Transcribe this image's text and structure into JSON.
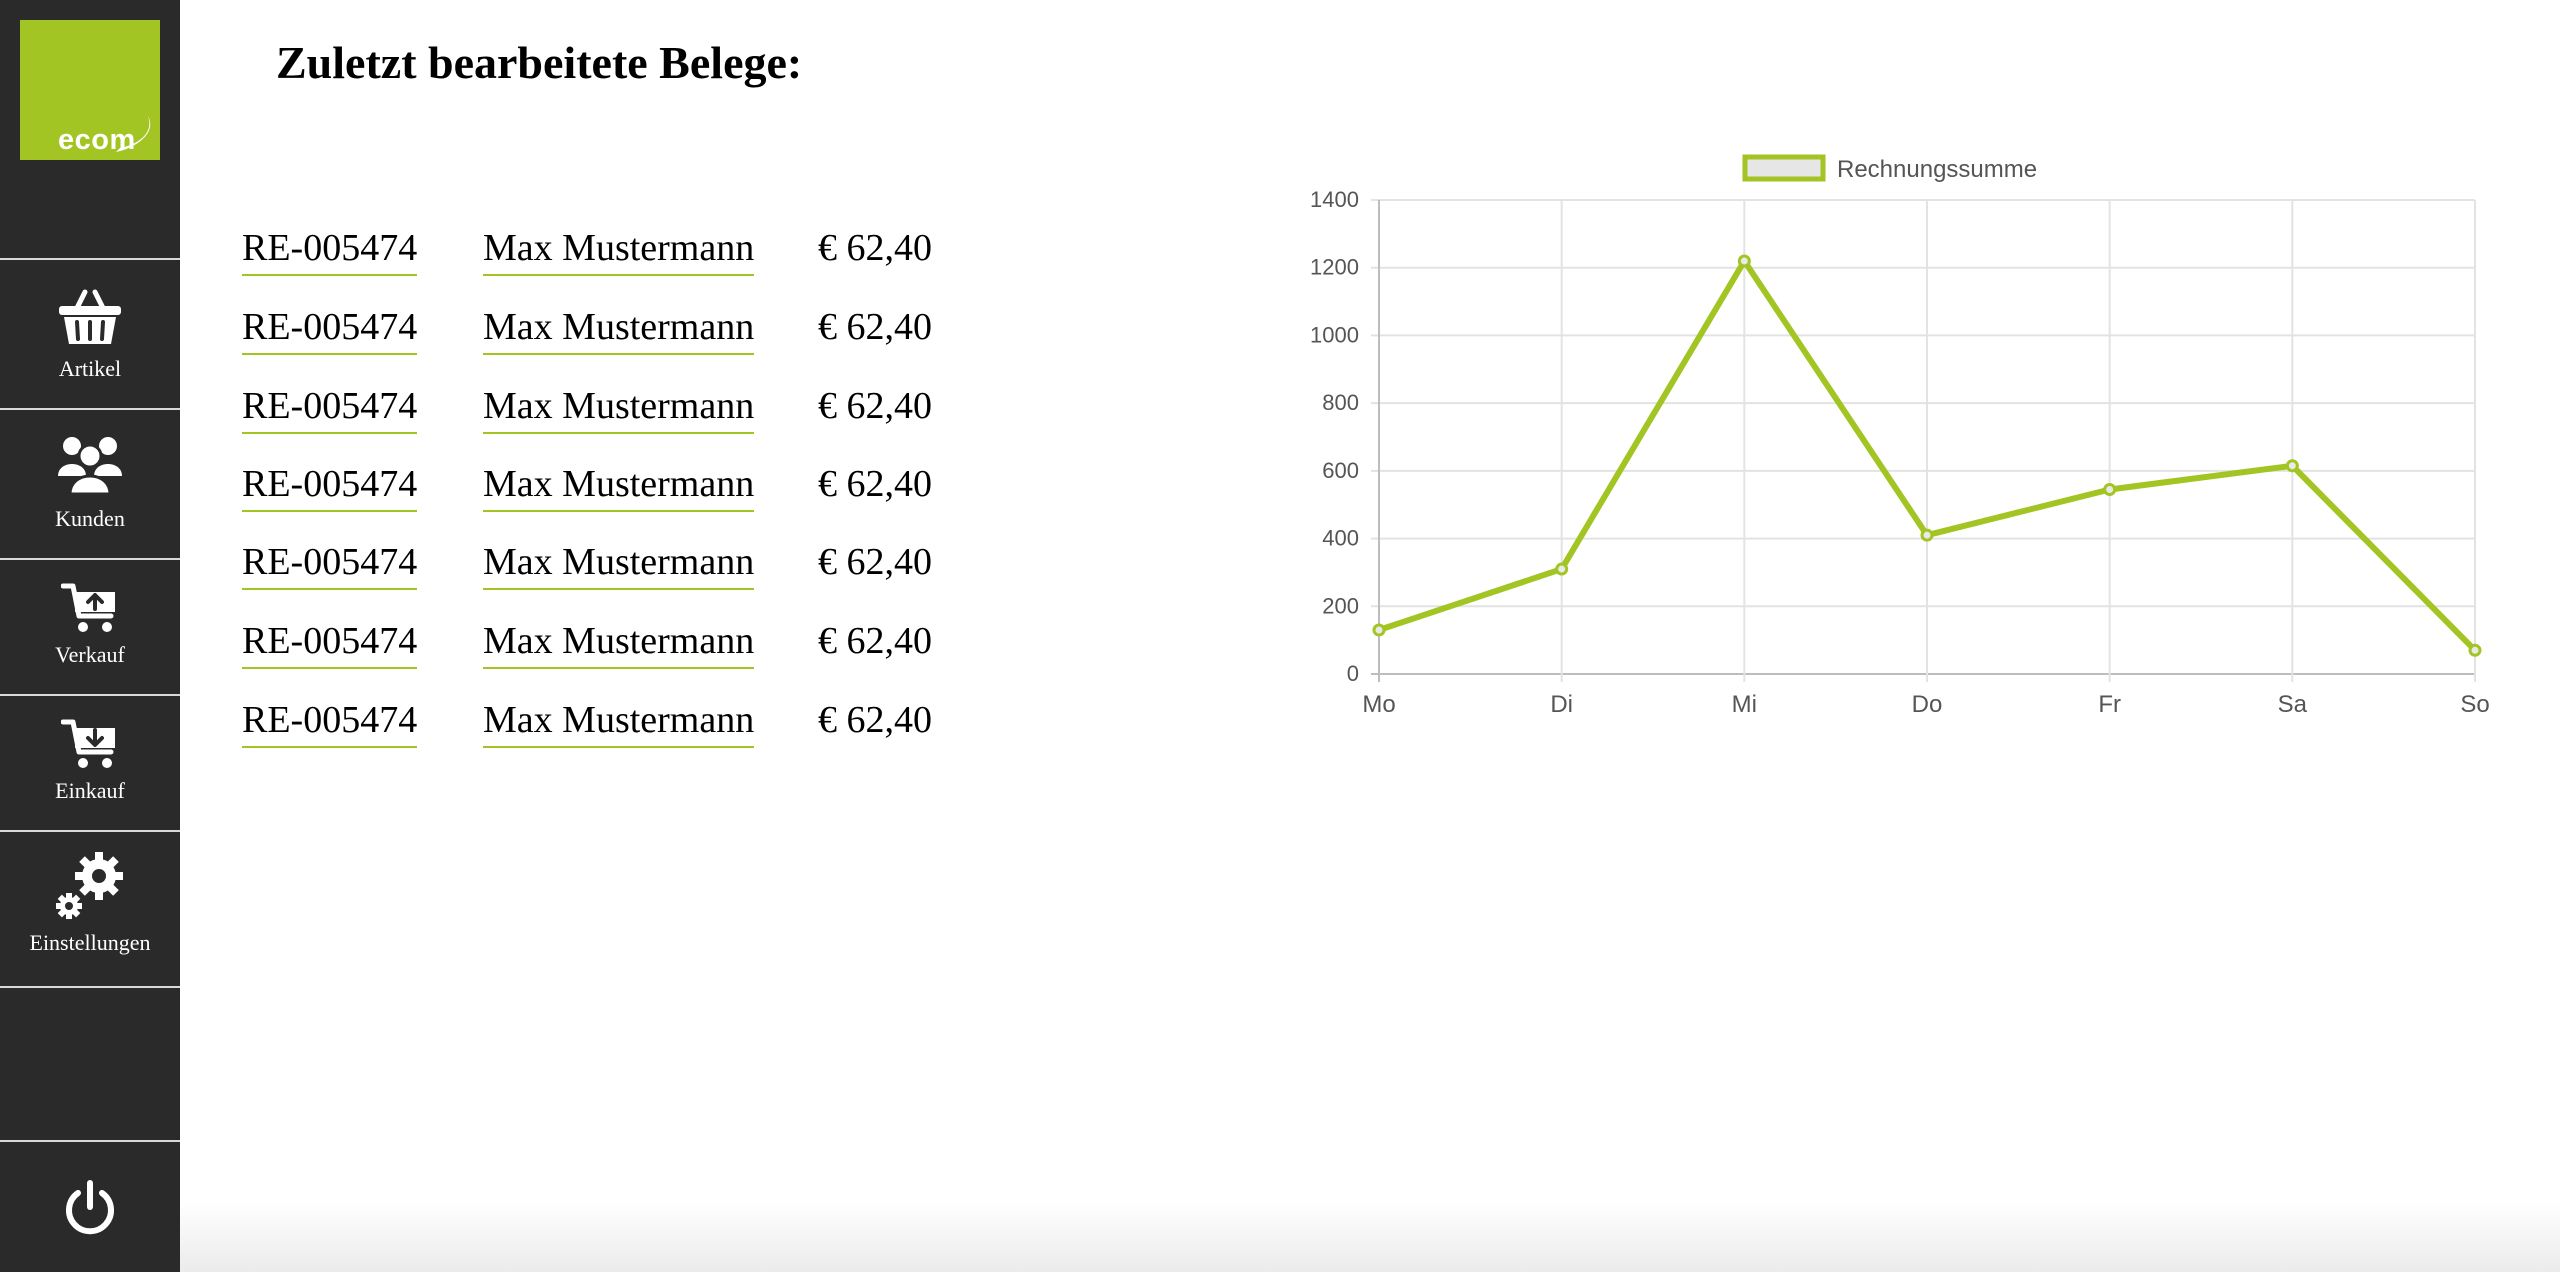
{
  "app": {
    "logo_text": "ecom",
    "accent": "#a2c523",
    "sidebar_bg": "#2a2a2a"
  },
  "sidebar": {
    "items": [
      {
        "label": "Artikel",
        "icon": "basket-icon"
      },
      {
        "label": "Kunden",
        "icon": "users-icon"
      },
      {
        "label": "Verkauf",
        "icon": "cart-upload-icon"
      },
      {
        "label": "Einkauf",
        "icon": "cart-download-icon"
      },
      {
        "label": "Einstellungen",
        "icon": "gears-icon"
      }
    ],
    "power_icon": "power-icon"
  },
  "main": {
    "title": "Zuletzt bearbeitete Belege:",
    "documents": [
      {
        "number": "RE-005474",
        "customer": "Max Mustermann",
        "amount": "€ 62,40"
      },
      {
        "number": "RE-005474",
        "customer": "Max Mustermann",
        "amount": "€ 62,40"
      },
      {
        "number": "RE-005474",
        "customer": "Max Mustermann",
        "amount": "€ 62,40"
      },
      {
        "number": "RE-005474",
        "customer": "Max Mustermann",
        "amount": "€ 62,40"
      },
      {
        "number": "RE-005474",
        "customer": "Max Mustermann",
        "amount": "€ 62,40"
      },
      {
        "number": "RE-005474",
        "customer": "Max Mustermann",
        "amount": "€ 62,40"
      },
      {
        "number": "RE-005474",
        "customer": "Max Mustermann",
        "amount": "€ 62,40"
      }
    ]
  },
  "chart_data": {
    "type": "line",
    "categories": [
      "Mo",
      "Di",
      "Mi",
      "Do",
      "Fr",
      "Sa",
      "So"
    ],
    "series": [
      {
        "name": "Rechnungssumme",
        "values": [
          130,
          310,
          1220,
          410,
          545,
          615,
          70
        ],
        "color": "#a2c523"
      }
    ],
    "yticks": [
      0,
      200,
      400,
      600,
      800,
      1000,
      1200,
      1400
    ],
    "ylim": [
      0,
      1400
    ],
    "grid": true,
    "legend": "top-center",
    "title": "",
    "xlabel": "",
    "ylabel": ""
  }
}
